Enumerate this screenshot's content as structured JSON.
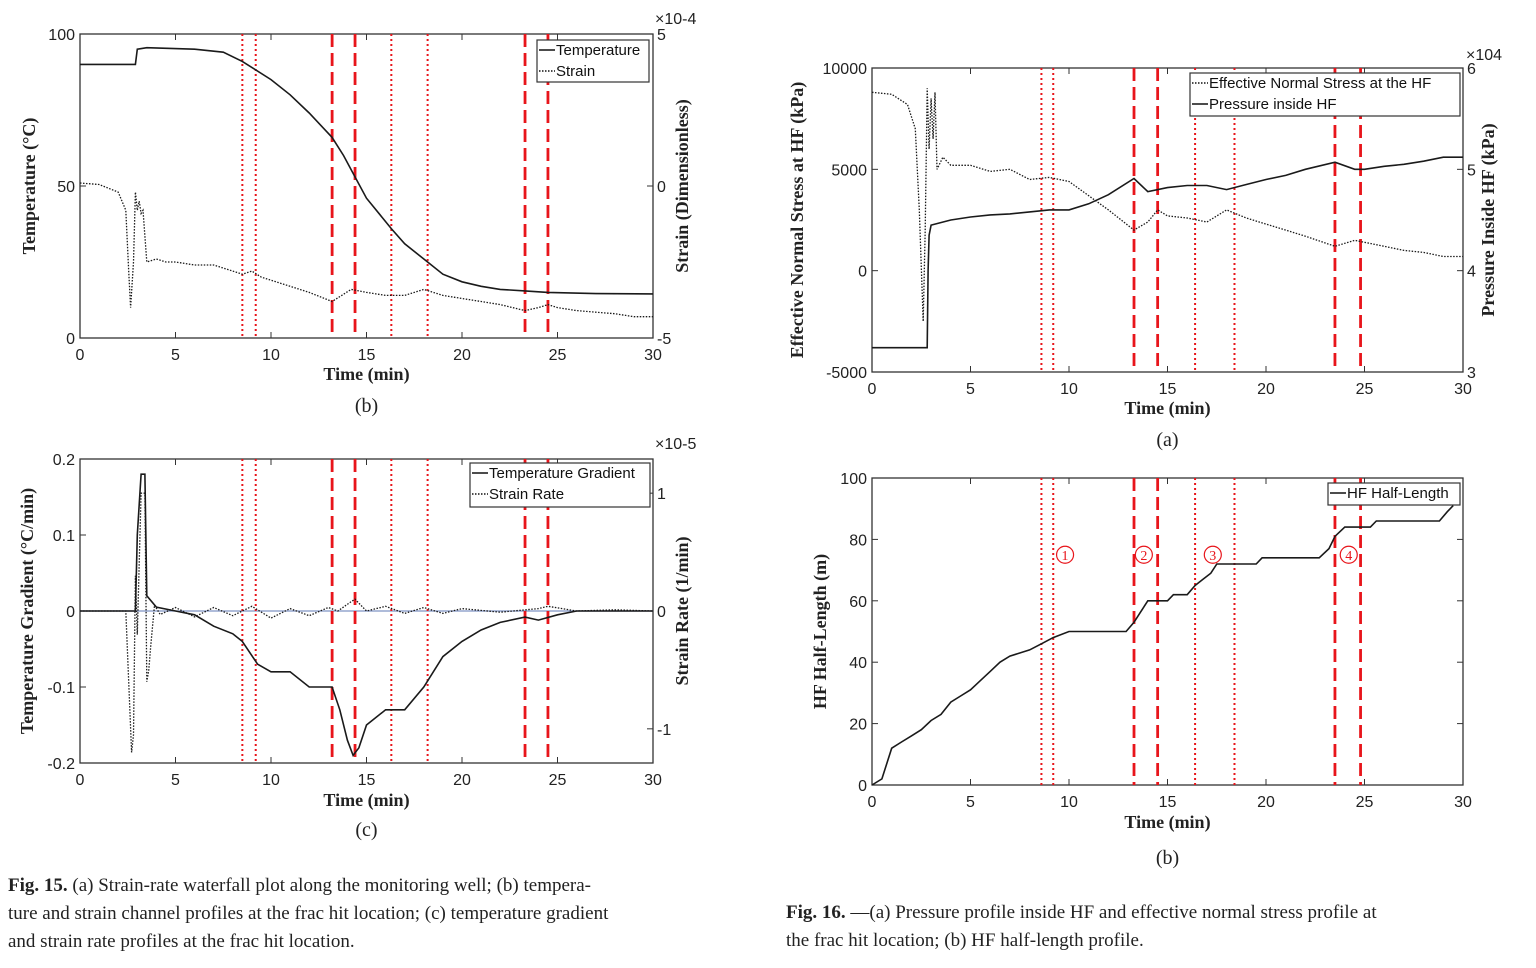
{
  "colors": {
    "event_line": "#e8151b",
    "series": "#1a1a1a",
    "zero_line": "#7f93c4"
  },
  "captions": {
    "fig15": {
      "label": "Fig. 15.",
      "lines": [
        "(a) Strain-rate waterfall plot along the monitoring well; (b) tempera-",
        "ture and strain channel profiles at the frac hit location; (c) temperature gradient",
        "and strain rate profiles at the frac hit location."
      ]
    },
    "fig16": {
      "label": "Fig. 16.",
      "lines": [
        "—(a) Pressure profile inside HF and effective normal stress profile at",
        "the frac hit location; (b) HF half-length profile."
      ]
    }
  },
  "chart_data": [
    {
      "type": "line",
      "panel_label": "(b)",
      "xlabel": "Time (min)",
      "ylabel": "Temperature (°C)",
      "y2label": "Strain (Dimensionless)",
      "y2_exponent": "×10-4",
      "xlim": [
        0,
        30
      ],
      "ylim": [
        0,
        100
      ],
      "y2lim": [
        -5,
        5
      ],
      "xticks": [
        "0",
        "5",
        "10",
        "15",
        "20",
        "25",
        "30"
      ],
      "yticks": [
        "0",
        "50",
        "100"
      ],
      "y2ticks": [
        "-5",
        "0",
        "5"
      ],
      "legend": [
        "Temperature",
        "Strain"
      ],
      "series": [
        {
          "name": "Temperature",
          "axis": "left",
          "style": "solid",
          "x": [
            0,
            2.9,
            3.0,
            3.5,
            6,
            7.5,
            8.5,
            10,
            11,
            12,
            13.2,
            13.8,
            14.4,
            15,
            16.3,
            17,
            18.2,
            19,
            20,
            21,
            22,
            23.3,
            24.5,
            27,
            30
          ],
          "y": [
            90,
            90,
            95,
            95.5,
            95,
            94,
            91,
            85,
            80,
            74,
            66,
            60,
            53,
            46,
            36,
            31,
            25,
            21,
            18.5,
            17,
            16,
            15.5,
            15,
            14.6,
            14.5
          ]
        },
        {
          "name": "Strain",
          "axis": "right",
          "style": "dotted",
          "x": [
            0,
            1,
            2,
            2.4,
            2.55,
            2.65,
            2.8,
            2.9,
            3.0,
            3.1,
            3.2,
            3.3,
            3.5,
            4,
            4.5,
            5,
            6,
            7,
            8,
            8.5,
            9,
            9.5,
            10,
            11,
            12,
            13.2,
            13.7,
            14.2,
            15,
            16,
            17,
            18,
            19,
            20,
            21,
            22,
            23.3,
            24,
            24.5,
            25,
            26,
            27,
            28,
            29,
            30
          ],
          "y": [
            0.1,
            0.05,
            -0.2,
            -0.8,
            -2.8,
            -4,
            -2.5,
            -0.2,
            -0.8,
            -0.5,
            -0.9,
            -0.8,
            -2.5,
            -2.4,
            -2.5,
            -2.5,
            -2.6,
            -2.6,
            -2.8,
            -2.9,
            -2.8,
            -3.0,
            -3.1,
            -3.3,
            -3.5,
            -3.8,
            -3.6,
            -3.4,
            -3.5,
            -3.6,
            -3.6,
            -3.4,
            -3.6,
            -3.7,
            -3.8,
            -3.9,
            -4.1,
            -4.0,
            -3.9,
            -4.0,
            -4.1,
            -4.15,
            -4.2,
            -4.3,
            -4.3
          ]
        }
      ],
      "vlines": [
        {
          "x": 8.5,
          "style": "dotted"
        },
        {
          "x": 9.2,
          "style": "dotted"
        },
        {
          "x": 13.2,
          "style": "dashed"
        },
        {
          "x": 14.4,
          "style": "dashed"
        },
        {
          "x": 16.3,
          "style": "dotted"
        },
        {
          "x": 18.2,
          "style": "dotted"
        },
        {
          "x": 23.3,
          "style": "dashed"
        },
        {
          "x": 24.5,
          "style": "dashed"
        }
      ]
    },
    {
      "type": "line",
      "panel_label": "(c)",
      "xlabel": "Time (min)",
      "ylabel": "Temperature Gradient (°C/min)",
      "y2label": "Strain Rate (1/min)",
      "y2_exponent": "×10-5",
      "xlim": [
        0,
        30
      ],
      "ylim": [
        -0.2,
        0.2
      ],
      "y2lim": [
        -1.29,
        1.29
      ],
      "xticks": [
        "0",
        "5",
        "10",
        "15",
        "20",
        "25",
        "30"
      ],
      "yticks": [
        "-0.2",
        "-0.1",
        "0",
        "0.1",
        "0.2"
      ],
      "y2ticks": [
        "-1",
        "0",
        "1"
      ],
      "legend": [
        "Temperature Gradient",
        "Strain Rate"
      ],
      "series": [
        {
          "name": "Temperature Gradient",
          "axis": "left",
          "style": "solid",
          "x": [
            0,
            2.9,
            3.0,
            3.2,
            3.4,
            3.5,
            4,
            5,
            6,
            7,
            8,
            8.5,
            9.3,
            10,
            11,
            12,
            13.2,
            13.6,
            14.0,
            14.3,
            14.6,
            15,
            16,
            17,
            18,
            19,
            20,
            21,
            22,
            23.3,
            24,
            25,
            26,
            27,
            30
          ],
          "y": [
            0,
            0,
            0.1,
            0.18,
            0.18,
            0.02,
            0.005,
            0,
            -0.005,
            -0.02,
            -0.03,
            -0.04,
            -0.07,
            -0.08,
            -0.08,
            -0.1,
            -0.1,
            -0.13,
            -0.17,
            -0.19,
            -0.18,
            -0.15,
            -0.13,
            -0.13,
            -0.1,
            -0.06,
            -0.04,
            -0.025,
            -0.015,
            -0.008,
            -0.012,
            -0.005,
            0,
            0,
            0
          ]
        },
        {
          "name": "Strain Rate",
          "axis": "right",
          "style": "dotted",
          "x": [
            0,
            2.4,
            2.55,
            2.7,
            2.8,
            2.9,
            3.0,
            3.1,
            3.2,
            3.4,
            3.5,
            3.6,
            3.7,
            3.9,
            4.2,
            5,
            6,
            7,
            8,
            9,
            10,
            11,
            12,
            13,
            13.5,
            14.2,
            14.4,
            15,
            16,
            17,
            18,
            19,
            20,
            22,
            24,
            24.5,
            26,
            28,
            30
          ],
          "y": [
            0,
            0,
            -0.6,
            -1.2,
            -1.05,
            0.3,
            -0.2,
            0.4,
            1.0,
            1.0,
            -0.6,
            -0.5,
            -0.3,
            0.05,
            -0.03,
            0.03,
            -0.05,
            0.03,
            -0.04,
            0.04,
            -0.06,
            0.02,
            -0.04,
            0.03,
            0.0,
            0.08,
            0.1,
            0.0,
            0.04,
            -0.02,
            0.03,
            -0.02,
            0.02,
            -0.01,
            0.02,
            0.04,
            0.0,
            0.01,
            0
          ]
        }
      ],
      "vlines": [
        {
          "x": 8.5,
          "style": "dotted"
        },
        {
          "x": 9.2,
          "style": "dotted"
        },
        {
          "x": 13.2,
          "style": "dashed"
        },
        {
          "x": 14.4,
          "style": "dashed"
        },
        {
          "x": 16.3,
          "style": "dotted"
        },
        {
          "x": 18.2,
          "style": "dotted"
        },
        {
          "x": 23.3,
          "style": "dashed"
        },
        {
          "x": 24.5,
          "style": "dashed"
        }
      ]
    },
    {
      "type": "line",
      "panel_label": "(a)",
      "xlabel": "Time (min)",
      "ylabel": "Effective Normal Stress at HF (kPa)",
      "y2label": "Pressure Inside HF (kPa)",
      "y2_exponent": "×104",
      "xlim": [
        0,
        30
      ],
      "ylim": [
        -5000,
        10000
      ],
      "y2lim": [
        3,
        6
      ],
      "xticks": [
        "0",
        "5",
        "10",
        "15",
        "20",
        "25",
        "30"
      ],
      "yticks": [
        "-5000",
        "0",
        "5000",
        "10000"
      ],
      "y2ticks": [
        "3",
        "4",
        "5",
        "6"
      ],
      "legend": [
        "Effective Normal Stress at the HF",
        "Pressure inside HF"
      ],
      "series": [
        {
          "name": "Effective Normal Stress at the HF",
          "axis": "left",
          "style": "dotted",
          "x": [
            0,
            1,
            1.8,
            2.2,
            2.4,
            2.6,
            2.7,
            2.8,
            2.9,
            3.0,
            3.1,
            3.2,
            3.3,
            3.6,
            4,
            5,
            6,
            7,
            8,
            9,
            10,
            11,
            12,
            13.3,
            14,
            14.5,
            15,
            16,
            17,
            18,
            19,
            20,
            21,
            22,
            23.5,
            24.5,
            25,
            26,
            27,
            28,
            29,
            30
          ],
          "y": [
            8800,
            8700,
            8200,
            7000,
            3000,
            -2500,
            2000,
            9000,
            6000,
            8500,
            6500,
            8800,
            5000,
            5600,
            5200,
            5200,
            4900,
            5000,
            4500,
            4600,
            4400,
            3700,
            3000,
            2000,
            2400,
            3000,
            2700,
            2600,
            2400,
            3000,
            2600,
            2300,
            2000,
            1700,
            1200,
            1500,
            1400,
            1200,
            1000,
            900,
            700,
            700
          ]
        },
        {
          "name": "Pressure inside HF",
          "axis": "right",
          "style": "solid",
          "x": [
            0,
            2.8,
            2.85,
            2.9,
            3.0,
            4,
            5,
            6,
            7,
            8,
            9,
            10,
            11,
            12,
            13.3,
            14,
            15,
            16,
            17,
            18,
            19,
            20,
            21,
            22,
            23.5,
            24.5,
            25,
            26,
            27,
            28,
            29,
            30
          ],
          "y": [
            3.24,
            3.24,
            4.0,
            4.35,
            4.45,
            4.5,
            4.53,
            4.55,
            4.56,
            4.58,
            4.6,
            4.6,
            4.66,
            4.75,
            4.91,
            4.78,
            4.82,
            4.84,
            4.84,
            4.8,
            4.85,
            4.9,
            4.94,
            5.0,
            5.07,
            5.0,
            5.0,
            5.03,
            5.05,
            5.08,
            5.12,
            5.12
          ]
        }
      ],
      "vlines": [
        {
          "x": 8.6,
          "style": "dotted"
        },
        {
          "x": 9.2,
          "style": "dotted"
        },
        {
          "x": 13.3,
          "style": "dashed"
        },
        {
          "x": 14.5,
          "style": "dashed"
        },
        {
          "x": 16.4,
          "style": "dotted"
        },
        {
          "x": 18.4,
          "style": "dotted"
        },
        {
          "x": 23.5,
          "style": "dashed"
        },
        {
          "x": 24.8,
          "style": "dashed"
        }
      ]
    },
    {
      "type": "line",
      "panel_label": "(b)",
      "xlabel": "Time (min)",
      "ylabel": "HF Half-Length (m)",
      "xlim": [
        0,
        30
      ],
      "ylim": [
        0,
        100
      ],
      "xticks": [
        "0",
        "5",
        "10",
        "15",
        "20",
        "25",
        "30"
      ],
      "yticks": [
        "0",
        "20",
        "40",
        "60",
        "80",
        "100"
      ],
      "legend": [
        "HF Half-Length"
      ],
      "series": [
        {
          "name": "HF Half-Length",
          "axis": "left",
          "style": "solid",
          "x": [
            0,
            0.5,
            0.8,
            1,
            1.5,
            2,
            2.5,
            3,
            3.5,
            4,
            4.5,
            5,
            5.5,
            6,
            6.5,
            7,
            8,
            8.6,
            9.2,
            10,
            12.9,
            13.3,
            13.6,
            14,
            15,
            15.3,
            16,
            16.4,
            16.8,
            17.2,
            17.5,
            19.5,
            19.8,
            22.7,
            23.2,
            23.5,
            24,
            25.3,
            25.6,
            28.8,
            29.2,
            29.5
          ],
          "y": [
            0,
            2,
            8,
            12,
            14,
            16,
            18,
            21,
            23,
            27,
            29,
            31,
            34,
            37,
            40,
            42,
            44,
            46,
            48,
            50,
            50,
            53,
            56,
            60,
            60,
            62,
            62,
            65,
            67,
            69,
            72,
            72,
            74,
            74,
            77,
            81,
            84,
            84,
            86,
            86,
            89,
            91
          ]
        }
      ],
      "vlines": [
        {
          "x": 8.6,
          "style": "dotted"
        },
        {
          "x": 9.2,
          "style": "dotted"
        },
        {
          "x": 13.3,
          "style": "dashed"
        },
        {
          "x": 14.5,
          "style": "dashed"
        },
        {
          "x": 16.4,
          "style": "dotted"
        },
        {
          "x": 18.4,
          "style": "dotted"
        },
        {
          "x": 23.5,
          "style": "dashed"
        },
        {
          "x": 24.8,
          "style": "dashed"
        }
      ],
      "annotations": [
        {
          "text": "1",
          "x": 9.8,
          "y": 75
        },
        {
          "text": "2",
          "x": 13.8,
          "y": 75
        },
        {
          "text": "3",
          "x": 17.3,
          "y": 75
        },
        {
          "text": "4",
          "x": 24.2,
          "y": 75
        }
      ]
    }
  ]
}
